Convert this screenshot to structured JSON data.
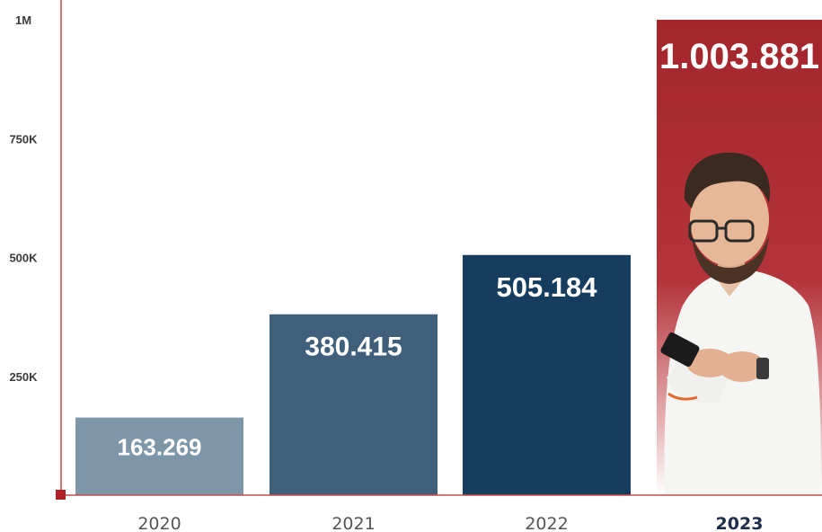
{
  "chart_data": {
    "type": "bar",
    "categories": [
      "2020",
      "2021",
      "2022",
      "2023"
    ],
    "values": [
      163269,
      380415,
      505184,
      1003881
    ],
    "data_labels": [
      "163.269",
      "380.415",
      "505.184",
      "1.003.881"
    ],
    "yticks": [
      {
        "value": 250000,
        "label": "250K"
      },
      {
        "value": 500000,
        "label": "500K"
      },
      {
        "value": 750000,
        "label": "750K"
      },
      {
        "value": 1000000,
        "label": "1M"
      }
    ],
    "ylim": [
      0,
      1000000
    ],
    "highlight_category": "2023",
    "colors": [
      "#7d97a8",
      "#3f5f7a",
      "#163d5e",
      "#a3262c"
    ],
    "axis_color": "#c64a4a",
    "grid": false,
    "title": "",
    "xlabel": "",
    "ylabel": ""
  }
}
